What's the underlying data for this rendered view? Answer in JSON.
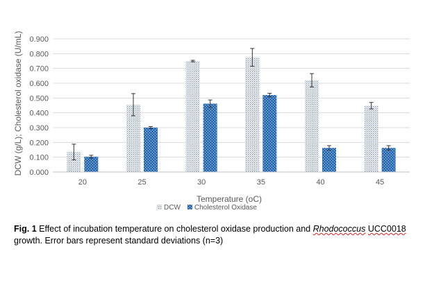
{
  "chart_data": {
    "type": "bar",
    "title": "",
    "xlabel": "Temperature (oC)",
    "ylabel": "DCW (g/L); Cholesterol oxidase (U/mL)",
    "categories": [
      "20",
      "25",
      "30",
      "35",
      "40",
      "45"
    ],
    "ylim": [
      0,
      0.9
    ],
    "yticks": [
      "0.000",
      "0.100",
      "0.200",
      "0.300",
      "0.400",
      "0.500",
      "0.600",
      "0.700",
      "0.800",
      "0.900"
    ],
    "grid": true,
    "legend": "bottom",
    "series": [
      {
        "name": "DCW",
        "color": "#a3b3c6",
        "pattern": "dots",
        "values": [
          0.135,
          0.455,
          0.75,
          0.775,
          0.62,
          0.448
        ],
        "errors": [
          0.053,
          0.075,
          0.005,
          0.06,
          0.045,
          0.022
        ]
      },
      {
        "name": "Cholesterol Oxidase",
        "color": "#2f6fba",
        "pattern": "lattice",
        "values": [
          0.103,
          0.3,
          0.462,
          0.52,
          0.163,
          0.163
        ],
        "errors": [
          0.01,
          0.007,
          0.025,
          0.012,
          0.015,
          0.015
        ]
      }
    ]
  },
  "caption": {
    "label": "Fig. 1",
    "text_a": " Effect of incubation temperature on cholesterol oxidase production and ",
    "species": "Rhodococcus",
    "strain": "UCC0018",
    "text_b": " growth. Error bars represent standard deviations (n=3)"
  }
}
